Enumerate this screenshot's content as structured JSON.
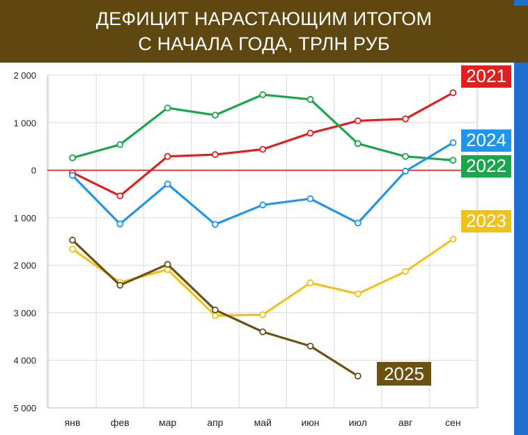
{
  "title": {
    "line1": "ДЕФИЦИТ НАРАСТАЮЩИМ ИТОГОМ",
    "line2": "С НАЧАЛА ГОДА, ТРЛН РУБ"
  },
  "colors": {
    "title_bg": "#5e4710",
    "side_stripe": "#1f6ed0",
    "zero_line": "#b71c1c",
    "grid": "#d9d9d9"
  },
  "chart_data": {
    "type": "line",
    "categories": [
      "янв",
      "фев",
      "мар",
      "апр",
      "май",
      "июн",
      "июл",
      "авг",
      "сен"
    ],
    "y_ticks": [
      2000,
      1000,
      0,
      -1000,
      -2000,
      -3000,
      -4000,
      -5000
    ],
    "y_tick_labels": [
      "2 000",
      "1 000",
      "0",
      "1 000",
      "2 000",
      "3 000",
      "4 000",
      "5 000"
    ],
    "ylim": [
      -5000,
      2000
    ],
    "grid": true,
    "legend": "inline labels at series ends",
    "series": [
      {
        "name": "2021",
        "color": "#e02020",
        "values": [
          -50,
          -540,
          290,
          330,
          440,
          780,
          1040,
          1080,
          1630
        ]
      },
      {
        "name": "2022",
        "color": "#1aa64b",
        "values": [
          260,
          540,
          1310,
          1160,
          1590,
          1490,
          560,
          290,
          210
        ]
      },
      {
        "name": "2023",
        "color": "#f2c21c",
        "values": [
          -1660,
          -2360,
          -2090,
          -3060,
          -3040,
          -2370,
          -2600,
          -2130,
          -1450
        ]
      },
      {
        "name": "2024",
        "color": "#2196e8",
        "values": [
          -110,
          -1130,
          -290,
          -1140,
          -730,
          -600,
          -1110,
          -20,
          580
        ]
      },
      {
        "name": "2025",
        "color": "#6b5210",
        "values": [
          -1470,
          -2420,
          -1980,
          -2940,
          -3400,
          -3700,
          -4330,
          null,
          null
        ]
      }
    ]
  }
}
